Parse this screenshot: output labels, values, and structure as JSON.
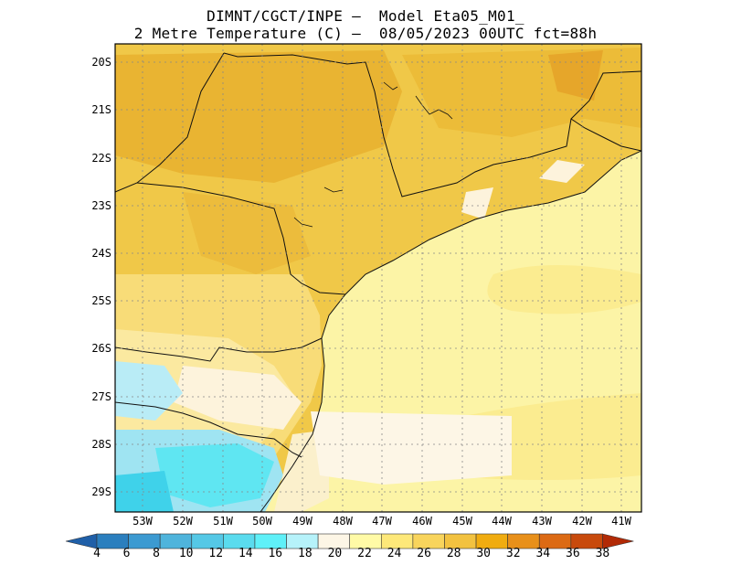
{
  "header": {
    "line1": "DIMNT/CGCT/INPE –  Model Eta05_M01_",
    "line2": "2 Metre Temperature (C) –  08/05/2023 00UTC fct=88h"
  },
  "map": {
    "lat_labels": [
      "20S",
      "21S",
      "22S",
      "23S",
      "24S",
      "25S",
      "26S",
      "27S",
      "28S",
      "29S"
    ],
    "lon_labels": [
      "53W",
      "52W",
      "51W",
      "50W",
      "49W",
      "48W",
      "47W",
      "46W",
      "45W",
      "44W",
      "43W",
      "42W",
      "41W"
    ]
  },
  "colorbar": {
    "labels": [
      "4",
      "6",
      "8",
      "10",
      "12",
      "14",
      "16",
      "18",
      "20",
      "22",
      "24",
      "26",
      "28",
      "30",
      "32",
      "34",
      "36",
      "38"
    ],
    "colors": [
      "#1f5fa8",
      "#2b7fbe",
      "#3c9ad1",
      "#4fb4dc",
      "#55c8e6",
      "#5adbee",
      "#5ff0f8",
      "#b6f2fa",
      "#fdf6e6",
      "#fffaa6",
      "#fde879",
      "#f8d45c",
      "#f2c240",
      "#f0ac10",
      "#e8901a",
      "#dc6a14",
      "#c84a0c",
      "#b22a06"
    ]
  },
  "colors": {
    "ocean": "#fcf4a6",
    "land_main": "#f0c848",
    "land_warm": "#e9b432",
    "coast_cool": "#fdf3dc",
    "cold_region": "#5fe6f2",
    "border": "#111111"
  }
}
